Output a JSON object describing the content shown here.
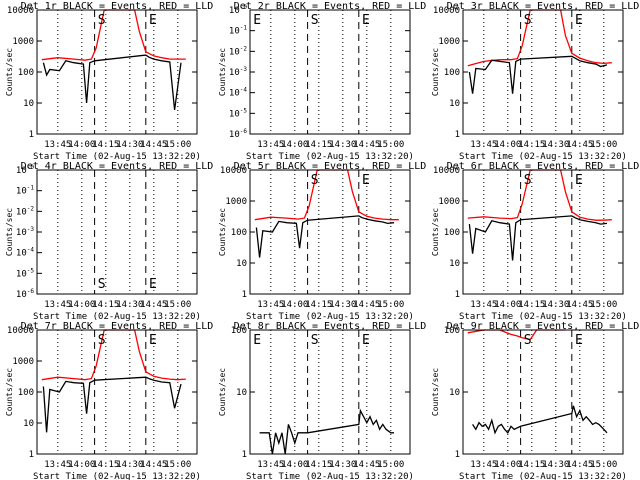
{
  "x_tick_labels": [
    "13:45",
    "14:00",
    "14:15",
    "14:30",
    "14:45",
    "15:00"
  ],
  "xlabel": "Start Time (02-Aug-15 13:32:20)",
  "ylabel": "Counts/sec",
  "colors": {
    "events": "#000000",
    "lld": "#ff0000",
    "background": "#ffffff"
  },
  "chart_data": [
    {
      "type": "line",
      "title": "Det 1r BLACK = Events, RED = LLD",
      "xlabel": "Start Time (02-Aug-15 13:32:20)",
      "ylabel": "Counts/sec",
      "x_ticks": [
        "13:45",
        "14:00",
        "14:15",
        "14:30",
        "14:45",
        "15:00"
      ],
      "y_scale": "log",
      "ylim": [
        1,
        10000
      ],
      "y_tick_labels": [
        "1",
        "10",
        "100",
        "1000",
        "10000"
      ],
      "annotations": [
        "S",
        "E"
      ],
      "series": [
        {
          "color": "#ff0000",
          "x": [
            "13:35",
            "13:45",
            "13:55",
            "14:02",
            "14:06",
            "14:09",
            "14:14",
            "14:18",
            "14:24",
            "14:30",
            "14:33",
            "14:36",
            "14:40",
            "14:45",
            "14:50",
            "14:55",
            "15:00",
            "15:05"
          ],
          "values": [
            250,
            290,
            260,
            240,
            260,
            600,
            10000,
            10000,
            10000,
            10000,
            10000,
            2000,
            450,
            330,
            290,
            260,
            260,
            260
          ]
        },
        {
          "color": "#000000",
          "x": [
            "13:36",
            "13:38",
            "13:40",
            "13:46",
            "13:50",
            "13:55",
            "14:01",
            "14:03",
            "14:05",
            "14:08",
            "14:40",
            "14:42",
            "14:45",
            "14:50",
            "14:55",
            "14:58",
            "15:02"
          ],
          "values": [
            200,
            80,
            120,
            110,
            230,
            200,
            180,
            10,
            200,
            230,
            350,
            300,
            260,
            230,
            210,
            6,
            200
          ]
        }
      ]
    },
    {
      "type": "line",
      "title": "Det 2r BLACK = Events, RED = LLD",
      "xlabel": "Start Time (02-Aug-15 13:32:20)",
      "ylabel": "Counts/sec",
      "x_ticks": [
        "13:45",
        "14:00",
        "14:15",
        "14:30",
        "14:45",
        "15:00"
      ],
      "y_scale": "log",
      "y_tick_labels": [
        "10-6",
        "10-5",
        "10-4",
        "10-3",
        "10-2",
        "10-1",
        "10-0"
      ],
      "annotations": [
        "E",
        "S",
        "E"
      ],
      "series": []
    },
    {
      "type": "line",
      "title": "Det 3r BLACK = Events, RED = LLD",
      "xlabel": "Start Time (02-Aug-15 13:32:20)",
      "ylabel": "Counts/sec",
      "x_ticks": [
        "13:45",
        "14:00",
        "14:15",
        "14:30",
        "14:45",
        "15:00"
      ],
      "y_scale": "log",
      "ylim": [
        1,
        10000
      ],
      "y_tick_labels": [
        "1",
        "10",
        "100",
        "1000",
        "10000"
      ],
      "annotations": [
        "S",
        "E"
      ],
      "series": [
        {
          "color": "#ff0000",
          "x": [
            "13:35",
            "13:45",
            "13:55",
            "14:02",
            "14:06",
            "14:09",
            "14:14",
            "14:18",
            "14:24",
            "14:30",
            "14:33",
            "14:36",
            "14:40",
            "14:45",
            "14:50",
            "14:55",
            "15:00",
            "15:05"
          ],
          "values": [
            160,
            220,
            250,
            250,
            270,
            700,
            10000,
            10000,
            10000,
            10000,
            10000,
            1500,
            400,
            280,
            230,
            200,
            190,
            200
          ]
        },
        {
          "color": "#000000",
          "x": [
            "13:36",
            "13:38",
            "13:40",
            "13:46",
            "13:50",
            "13:55",
            "14:01",
            "14:03",
            "14:05",
            "14:08",
            "14:40",
            "14:42",
            "14:45",
            "14:50",
            "14:55",
            "14:58",
            "15:02"
          ],
          "values": [
            100,
            20,
            130,
            120,
            240,
            220,
            200,
            20,
            220,
            260,
            320,
            280,
            230,
            200,
            180,
            150,
            170
          ]
        }
      ]
    },
    {
      "type": "line",
      "title": "Det 4r BLACK = Events, RED = LLD",
      "xlabel": "Start Time (02-Aug-15 13:32:20)",
      "ylabel": "Counts/sec",
      "x_ticks": [
        "13:45",
        "14:00",
        "14:15",
        "14:30",
        "14:45",
        "15:00"
      ],
      "y_scale": "log",
      "y_tick_labels": [
        "10-6",
        "10-5",
        "10-4",
        "10-3",
        "10-2",
        "10-1",
        "10-0"
      ],
      "annotations": [
        "S",
        "E"
      ],
      "series": []
    },
    {
      "type": "line",
      "title": "Det 5r BLACK = Events, RED = LLD",
      "xlabel": "Start Time (02-Aug-15 13:32:20)",
      "ylabel": "Counts/sec",
      "x_ticks": [
        "13:45",
        "14:00",
        "14:15",
        "14:30",
        "14:45",
        "15:00"
      ],
      "y_scale": "log",
      "ylim": [
        1,
        10000
      ],
      "y_tick_labels": [
        "1",
        "10",
        "100",
        "1000",
        "10000"
      ],
      "annotations": [
        "S",
        "E"
      ],
      "series": [
        {
          "color": "#ff0000",
          "x": [
            "13:35",
            "13:45",
            "13:55",
            "14:02",
            "14:06",
            "14:09",
            "14:14",
            "14:18",
            "14:24",
            "14:30",
            "14:33",
            "14:36",
            "14:40",
            "14:45",
            "14:50",
            "14:55",
            "15:00",
            "15:05"
          ],
          "values": [
            250,
            300,
            280,
            260,
            280,
            700,
            10000,
            10000,
            10000,
            10000,
            10000,
            2000,
            450,
            320,
            280,
            260,
            250,
            250
          ]
        },
        {
          "color": "#000000",
          "x": [
            "13:36",
            "13:38",
            "13:40",
            "13:46",
            "13:50",
            "13:55",
            "14:01",
            "14:03",
            "14:05",
            "14:08",
            "14:40",
            "14:42",
            "14:45",
            "14:50",
            "14:55",
            "14:58",
            "15:02"
          ],
          "values": [
            140,
            15,
            110,
            100,
            220,
            200,
            190,
            30,
            200,
            240,
            330,
            290,
            260,
            230,
            210,
            190,
            200
          ]
        }
      ]
    },
    {
      "type": "line",
      "title": "Det 6r BLACK = Events, RED = LLD",
      "xlabel": "Start Time (02-Aug-15 13:32:20)",
      "ylabel": "Counts/sec",
      "x_ticks": [
        "13:45",
        "14:00",
        "14:15",
        "14:30",
        "14:45",
        "15:00"
      ],
      "y_scale": "log",
      "ylim": [
        1,
        10000
      ],
      "y_tick_labels": [
        "1",
        "10",
        "100",
        "1000",
        "10000"
      ],
      "annotations": [
        "S",
        "E"
      ],
      "series": [
        {
          "color": "#ff0000",
          "x": [
            "13:35",
            "13:45",
            "13:55",
            "14:02",
            "14:06",
            "14:09",
            "14:14",
            "14:18",
            "14:24",
            "14:30",
            "14:33",
            "14:36",
            "14:40",
            "14:45",
            "14:50",
            "14:55",
            "15:00",
            "15:05"
          ],
          "values": [
            280,
            310,
            280,
            270,
            290,
            800,
            10000,
            10000,
            10000,
            10000,
            10000,
            2000,
            450,
            300,
            260,
            240,
            240,
            250
          ]
        },
        {
          "color": "#000000",
          "x": [
            "13:36",
            "13:38",
            "13:40",
            "13:46",
            "13:50",
            "13:55",
            "14:01",
            "14:03",
            "14:05",
            "14:08",
            "14:40",
            "14:42",
            "14:45",
            "14:50",
            "14:55",
            "14:58",
            "15:02"
          ],
          "values": [
            180,
            20,
            130,
            100,
            230,
            200,
            180,
            12,
            200,
            250,
            330,
            290,
            250,
            220,
            200,
            180,
            190
          ]
        }
      ]
    },
    {
      "type": "line",
      "title": "Det 7r BLACK = Events, RED = LLD",
      "xlabel": "Start Time (02-Aug-15 13:32:20)",
      "ylabel": "Counts/sec",
      "x_ticks": [
        "13:45",
        "14:00",
        "14:15",
        "14:30",
        "14:45",
        "15:00"
      ],
      "y_scale": "log",
      "ylim": [
        1,
        10000
      ],
      "y_tick_labels": [
        "1",
        "10",
        "100",
        "1000",
        "10000"
      ],
      "annotations": [
        "S",
        "E"
      ],
      "series": [
        {
          "color": "#ff0000",
          "x": [
            "13:35",
            "13:45",
            "13:55",
            "14:02",
            "14:06",
            "14:09",
            "14:14",
            "14:18",
            "14:24",
            "14:30",
            "14:33",
            "14:36",
            "14:40",
            "14:45",
            "14:50",
            "14:55",
            "15:00",
            "15:05"
          ],
          "values": [
            250,
            300,
            270,
            250,
            270,
            700,
            10000,
            10000,
            10000,
            10000,
            10000,
            2000,
            450,
            320,
            280,
            260,
            250,
            260
          ]
        },
        {
          "color": "#000000",
          "x": [
            "13:36",
            "13:38",
            "13:40",
            "13:46",
            "13:50",
            "13:55",
            "14:01",
            "14:03",
            "14:05",
            "14:08",
            "14:40",
            "14:42",
            "14:45",
            "14:50",
            "14:55",
            "14:58",
            "15:02"
          ],
          "values": [
            150,
            5,
            120,
            100,
            220,
            200,
            190,
            20,
            200,
            240,
            300,
            270,
            240,
            210,
            200,
            30,
            180
          ]
        }
      ]
    },
    {
      "type": "line",
      "title": "Det 8r BLACK = Events, RED = LLD",
      "xlabel": "Start Time (02-Aug-15 13:32:20)",
      "ylabel": "Counts/sec",
      "x_ticks": [
        "13:45",
        "14:00",
        "14:15",
        "14:30",
        "14:45",
        "15:00"
      ],
      "y_scale": "log",
      "ylim": [
        1,
        100
      ],
      "y_tick_labels": [
        "1",
        "10",
        "100"
      ],
      "annotations": [
        "E",
        "S",
        "E"
      ],
      "series": [
        {
          "color": "#000000",
          "x": [
            "13:38",
            "13:44",
            "13:46",
            "13:48",
            "13:50",
            "13:52",
            "13:54",
            "13:56",
            "13:58",
            "14:00",
            "14:02",
            "14:04",
            "14:08",
            "14:40",
            "14:41",
            "14:43",
            "14:45",
            "14:47",
            "14:49",
            "14:51",
            "14:53",
            "14:55",
            "14:57",
            "15:00",
            "15:02"
          ],
          "values": [
            2.2,
            2.2,
            1,
            2.2,
            1.5,
            2.2,
            1,
            3,
            2.2,
            1.5,
            2.2,
            2.2,
            2.2,
            3,
            5,
            4,
            3.2,
            4,
            3,
            3.5,
            2.5,
            3,
            2.5,
            2.2,
            2.2
          ]
        }
      ]
    },
    {
      "type": "line",
      "title": "Det 9r BLACK = Events, RED = LLD",
      "xlabel": "Start Time (02-Aug-15 13:32:20)",
      "ylabel": "Counts/sec",
      "x_ticks": [
        "13:45",
        "14:00",
        "14:15",
        "14:30",
        "14:45",
        "15:00"
      ],
      "y_scale": "log",
      "ylim": [
        1,
        100
      ],
      "y_tick_labels": [
        "1",
        "10",
        "100"
      ],
      "annotations": [
        "S",
        "E"
      ],
      "series": [
        {
          "color": "#ff0000",
          "x": [
            "13:35",
            "13:45",
            "13:55",
            "14:02",
            "14:06",
            "14:09",
            "14:14",
            "14:18",
            "14:24",
            "14:30",
            "14:33",
            "14:36"
          ],
          "values": [
            90,
            110,
            100,
            85,
            80,
            75,
            70,
            100,
            100,
            100,
            100,
            100
          ]
        },
        {
          "color": "#000000",
          "x": [
            "13:38",
            "13:40",
            "13:42",
            "13:44",
            "13:46",
            "13:48",
            "13:50",
            "13:52",
            "13:54",
            "13:56",
            "13:58",
            "14:00",
            "14:02",
            "14:04",
            "14:08",
            "14:40",
            "14:41",
            "14:43",
            "14:45",
            "14:47",
            "14:49",
            "14:51",
            "14:53",
            "14:55",
            "14:57",
            "15:00",
            "15:02"
          ],
          "values": [
            3,
            2.5,
            3.2,
            2.8,
            3,
            2.5,
            3.5,
            2.2,
            2.8,
            3,
            2.5,
            2.2,
            2.8,
            2.5,
            2.8,
            4.5,
            6,
            4,
            5,
            3.5,
            4,
            3.5,
            3,
            3.2,
            3,
            2.5,
            2.2
          ]
        }
      ]
    }
  ]
}
